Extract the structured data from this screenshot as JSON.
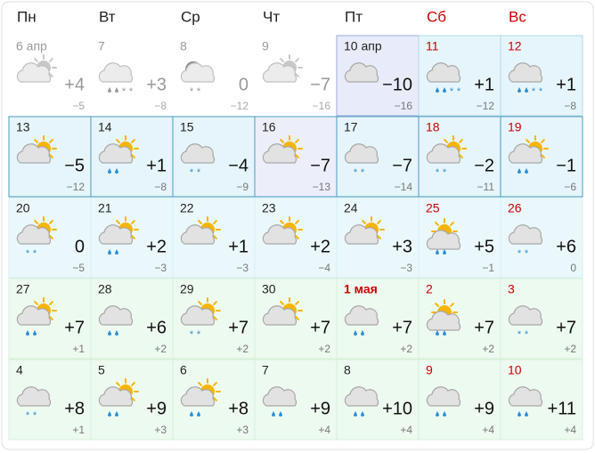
{
  "header": {
    "days": [
      "Пн",
      "Вт",
      "Ср",
      "Чт",
      "Пт",
      "Сб",
      "Вс"
    ]
  },
  "weeks": [
    [
      {
        "date": "6 апр",
        "temp": "+4",
        "low": "−5"
      },
      {
        "date": "7",
        "temp": "+3",
        "low": "−8"
      },
      {
        "date": "8",
        "temp": "0",
        "low": "−12"
      },
      {
        "date": "9",
        "temp": "−7",
        "low": "−16"
      },
      {
        "date": "10 апр",
        "temp": "−10",
        "low": "−16"
      },
      {
        "date": "11",
        "temp": "+1",
        "low": "−12"
      },
      {
        "date": "12",
        "temp": "+1",
        "low": "−8"
      }
    ],
    [
      {
        "date": "13",
        "temp": "−5",
        "low": "−12"
      },
      {
        "date": "14",
        "temp": "+1",
        "low": "−8"
      },
      {
        "date": "15",
        "temp": "−4",
        "low": "−9"
      },
      {
        "date": "16",
        "temp": "−7",
        "low": "−13"
      },
      {
        "date": "17",
        "temp": "−7",
        "low": "−14"
      },
      {
        "date": "18",
        "temp": "−2",
        "low": "−11"
      },
      {
        "date": "19",
        "temp": "−1",
        "low": "−6"
      }
    ],
    [
      {
        "date": "20",
        "temp": "0",
        "low": "−5"
      },
      {
        "date": "21",
        "temp": "+2",
        "low": "−3"
      },
      {
        "date": "22",
        "temp": "+1",
        "low": "−3"
      },
      {
        "date": "23",
        "temp": "+2",
        "low": "−4"
      },
      {
        "date": "24",
        "temp": "+3",
        "low": "−3"
      },
      {
        "date": "25",
        "temp": "+5",
        "low": "−1"
      },
      {
        "date": "26",
        "temp": "+6",
        "low": "0"
      }
    ],
    [
      {
        "date": "27",
        "temp": "+7",
        "low": "+1"
      },
      {
        "date": "28",
        "temp": "+6",
        "low": "+2"
      },
      {
        "date": "29",
        "temp": "+7",
        "low": "+2"
      },
      {
        "date": "30",
        "temp": "+7",
        "low": "+2"
      },
      {
        "date": "1 мая",
        "temp": "+7",
        "low": "+2"
      },
      {
        "date": "2",
        "temp": "+7",
        "low": "+2"
      },
      {
        "date": "3",
        "temp": "+7",
        "low": "+2"
      }
    ],
    [
      {
        "date": "4",
        "temp": "+8",
        "low": "+1"
      },
      {
        "date": "5",
        "temp": "+9",
        "low": "+3"
      },
      {
        "date": "6",
        "temp": "+8",
        "low": "+3"
      },
      {
        "date": "7",
        "temp": "+9",
        "low": "+4"
      },
      {
        "date": "8",
        "temp": "+10",
        "low": "+4"
      },
      {
        "date": "9",
        "temp": "+9",
        "low": "+4"
      },
      {
        "date": "10",
        "temp": "+11",
        "low": "+4"
      }
    ]
  ]
}
